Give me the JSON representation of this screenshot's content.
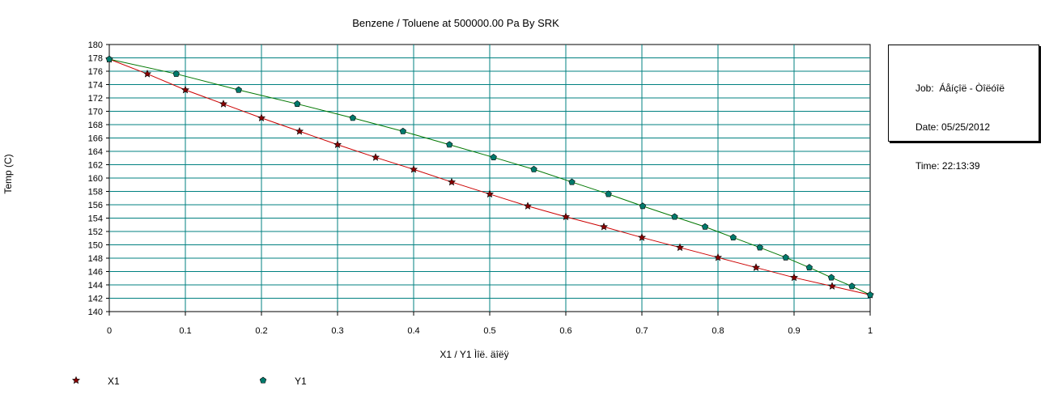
{
  "chart_data": {
    "type": "line",
    "title": "Benzene / Toluene at 500000.00 Pa By SRK",
    "xlabel": "X1 / Y1 Ìîë. äîëÿ",
    "ylabel": "Temp (C)",
    "xlim": [
      0,
      1
    ],
    "ylim": [
      140,
      180
    ],
    "x_ticks": [
      "0",
      "0.1",
      "0.2",
      "0.3",
      "0.4",
      "0.5",
      "0.6",
      "0.7",
      "0.8",
      "0.9",
      "1"
    ],
    "y_ticks": [
      "140",
      "142",
      "144",
      "146",
      "148",
      "150",
      "152",
      "154",
      "156",
      "158",
      "160",
      "162",
      "164",
      "166",
      "168",
      "170",
      "172",
      "174",
      "176",
      "178",
      "180"
    ],
    "grid": true,
    "legend_position": "bottom-left",
    "series": [
      {
        "name": "X1",
        "color": "#cc0000",
        "marker_color": "#8b0000",
        "marker": "star-icon",
        "points": [
          [
            0,
            177.8
          ],
          [
            0.05,
            175.6
          ],
          [
            0.1,
            173.2
          ],
          [
            0.15,
            171.1
          ],
          [
            0.2,
            169.0
          ],
          [
            0.25,
            167.0
          ],
          [
            0.3,
            165.0
          ],
          [
            0.35,
            163.1
          ],
          [
            0.4,
            161.3
          ],
          [
            0.45,
            159.4
          ],
          [
            0.5,
            157.6
          ],
          [
            0.55,
            155.8
          ],
          [
            0.6,
            154.2
          ],
          [
            0.65,
            152.7
          ],
          [
            0.7,
            151.1
          ],
          [
            0.75,
            149.6
          ],
          [
            0.8,
            148.1
          ],
          [
            0.85,
            146.6
          ],
          [
            0.9,
            145.1
          ],
          [
            0.95,
            143.8
          ],
          [
            1.0,
            142.5
          ]
        ]
      },
      {
        "name": "Y1",
        "color": "#007700",
        "marker_color": "#007a6c",
        "marker": "pentagon-icon",
        "points": [
          [
            0,
            177.8
          ],
          [
            0.088,
            175.6
          ],
          [
            0.17,
            173.2
          ],
          [
            0.247,
            171.1
          ],
          [
            0.32,
            169.0
          ],
          [
            0.386,
            167.0
          ],
          [
            0.447,
            165.0
          ],
          [
            0.505,
            163.1
          ],
          [
            0.558,
            161.3
          ],
          [
            0.608,
            159.4
          ],
          [
            0.656,
            157.6
          ],
          [
            0.701,
            155.8
          ],
          [
            0.743,
            154.2
          ],
          [
            0.783,
            152.7
          ],
          [
            0.82,
            151.1
          ],
          [
            0.855,
            149.6
          ],
          [
            0.889,
            148.1
          ],
          [
            0.92,
            146.6
          ],
          [
            0.949,
            145.1
          ],
          [
            0.976,
            143.8
          ],
          [
            1.0,
            142.5
          ]
        ]
      }
    ]
  },
  "info_box": {
    "job": "Job:  Áåíçîë - Òîëóîë",
    "date": "Date: 05/25/2012",
    "time": "Time: 22:13:39"
  },
  "colors": {
    "grid": "#008080",
    "axis": "#000000",
    "background": "#ffffff"
  }
}
